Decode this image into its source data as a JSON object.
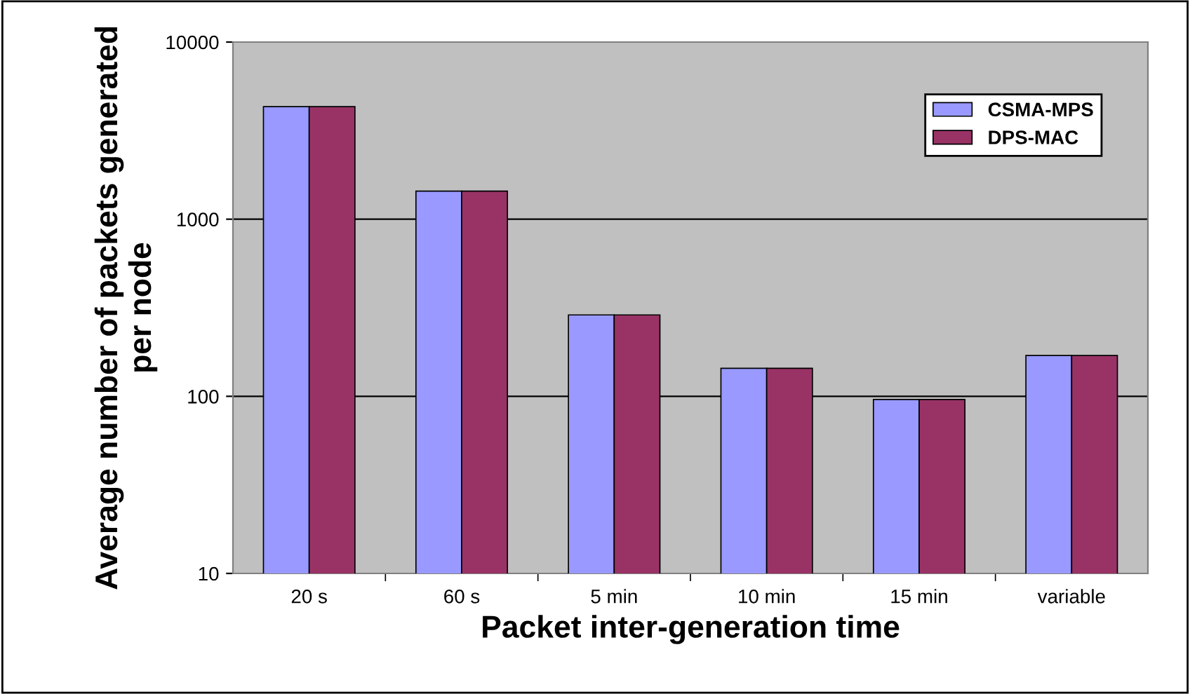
{
  "chart_data": {
    "type": "bar",
    "xlabel": "Packet inter-generation time",
    "ylabel": "Average number of packets generated per node",
    "categories": [
      "20 s",
      "60 s",
      "5 min",
      "10 min",
      "15 min",
      "variable"
    ],
    "series": [
      {
        "name": "CSMA-MPS",
        "color": "#9999ff",
        "values": [
          4320,
          1440,
          288,
          144,
          96,
          170
        ]
      },
      {
        "name": "DPS-MAC",
        "color": "#993366",
        "values": [
          4320,
          1440,
          288,
          144,
          96,
          170
        ]
      }
    ],
    "log": "y",
    "ylim": [
      10,
      10000
    ],
    "yticks": [
      10,
      100,
      1000,
      10000
    ],
    "grid": "y",
    "legend": "top right"
  }
}
